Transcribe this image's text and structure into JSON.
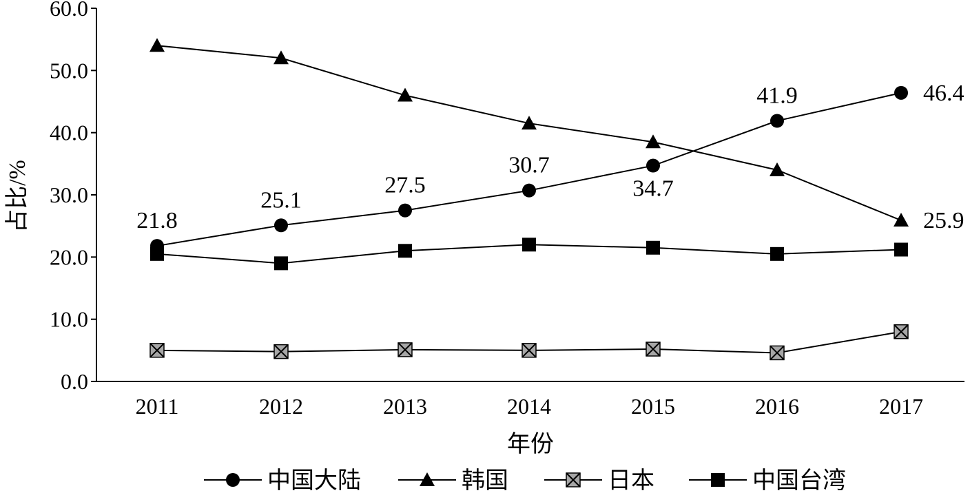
{
  "chart_data": {
    "type": "line",
    "title": "",
    "xlabel": "年份",
    "ylabel": "占比/%",
    "ylim": [
      0,
      60
    ],
    "yticks": [
      "0.0",
      "10.0",
      "20.0",
      "30.0",
      "40.0",
      "50.0",
      "60.0"
    ],
    "categories": [
      "2011",
      "2012",
      "2013",
      "2014",
      "2015",
      "2016",
      "2017"
    ],
    "grid": false,
    "legend_position": "bottom",
    "series": [
      {
        "name": "中国大陆",
        "marker": "circle",
        "values": [
          21.8,
          25.1,
          27.5,
          30.7,
          34.7,
          41.9,
          46.4
        ],
        "labels": [
          "21.8",
          "25.1",
          "27.5",
          "30.7",
          "34.7",
          "41.9",
          "46.4"
        ]
      },
      {
        "name": "韩国",
        "marker": "triangle",
        "values": [
          54.0,
          52.0,
          46.0,
          41.5,
          38.5,
          34.0,
          25.9
        ],
        "labels": [
          "",
          "",
          "",
          "",
          "",
          "",
          "25.9"
        ]
      },
      {
        "name": "日本",
        "marker": "x-square",
        "values": [
          5.0,
          4.8,
          5.1,
          5.0,
          5.2,
          4.6,
          8.0
        ],
        "labels": [
          "",
          "",
          "",
          "",
          "",
          "",
          ""
        ]
      },
      {
        "name": "中国台湾",
        "marker": "square",
        "values": [
          20.5,
          19.0,
          21.0,
          22.0,
          21.5,
          20.5,
          21.2
        ],
        "labels": [
          "",
          "",
          "",
          "",
          "",
          "",
          ""
        ]
      }
    ]
  }
}
